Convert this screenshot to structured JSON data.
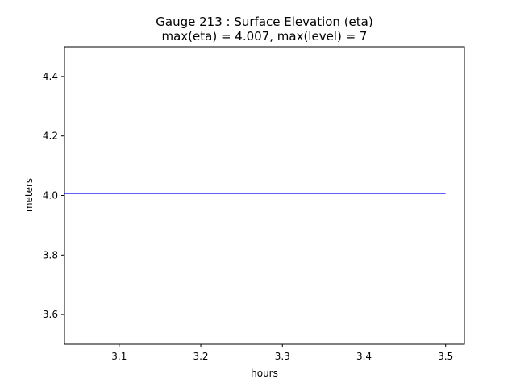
{
  "chart_data": {
    "type": "line",
    "title_line1": "Gauge 213 : Surface Elevation (eta)",
    "title_line2": "max(eta) =   4.007,    max(level) = 7",
    "xlabel": "hours",
    "ylabel": "meters",
    "xlim": [
      3.033,
      3.523
    ],
    "ylim": [
      3.5,
      4.5
    ],
    "xticks": [
      3.1,
      3.2,
      3.3,
      3.4,
      3.5
    ],
    "xtick_labels": [
      "3.1",
      "3.2",
      "3.3",
      "3.4",
      "3.5"
    ],
    "yticks": [
      3.6,
      3.8,
      4.0,
      4.2,
      4.4
    ],
    "ytick_labels": [
      "3.6",
      "3.8",
      "4.0",
      "4.2",
      "4.4"
    ],
    "grid": false,
    "series": [
      {
        "color": "#0000ff",
        "x": [
          3.033,
          3.1,
          3.2,
          3.3,
          3.4,
          3.5
        ],
        "y": [
          4.007,
          4.007,
          4.007,
          4.007,
          4.007,
          4.007
        ]
      }
    ]
  }
}
